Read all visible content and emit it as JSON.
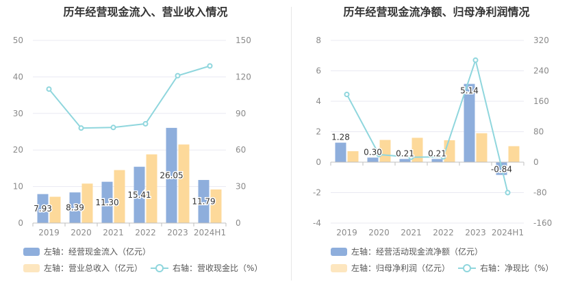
{
  "colors": {
    "blue": "#8eaedc",
    "orange": "#fdd99a",
    "line": "#8fd6dd",
    "grid": "#e9e9f2",
    "axis_text": "#8a8a8a"
  },
  "left": {
    "title": "历年经营现金流入、营业收入情况",
    "legend": {
      "bar1": "左轴：经营现金流入（亿元）",
      "bar2": "左轴：营业总收入（亿元）",
      "line": "右轴：营收现金比（%）"
    }
  },
  "right": {
    "title": "历年经营现金流净额、归母净利润情况",
    "legend": {
      "bar1": "左轴：经营活动现金流净额（亿元）",
      "bar2": "左轴：归母净利润（亿元）",
      "line": "右轴：净现比（%）"
    }
  },
  "chart_data": [
    {
      "type": "bar",
      "title": "历年经营现金流入、营业收入情况",
      "categories": [
        "2019",
        "2020",
        "2021",
        "2022",
        "2023",
        "2024H1"
      ],
      "left_axis": {
        "ylim": [
          0,
          50
        ],
        "ticks": [
          0,
          10,
          20,
          30,
          40,
          50
        ]
      },
      "right_axis": {
        "ylim": [
          0,
          150
        ],
        "ticks": [
          0,
          30,
          60,
          90,
          120,
          150
        ]
      },
      "series": [
        {
          "name": "左轴：经营现金流入（亿元）",
          "axis": "left",
          "kind": "bar",
          "values": [
            7.93,
            8.39,
            11.3,
            15.41,
            26.05,
            11.79
          ],
          "labels": [
            "7.93",
            "8.39",
            "11.30",
            "15.41",
            "26.05",
            "11.79"
          ]
        },
        {
          "name": "左轴：营业总收入（亿元）",
          "axis": "left",
          "kind": "bar",
          "values": [
            7.2,
            10.8,
            14.5,
            18.8,
            21.5,
            9.2
          ]
        },
        {
          "name": "右轴：营收现金比（%）",
          "axis": "right",
          "kind": "line",
          "values": [
            110,
            78,
            78.5,
            81.5,
            121,
            129
          ]
        }
      ],
      "grid": true
    },
    {
      "type": "bar",
      "title": "历年经营现金流净额、归母净利润情况",
      "categories": [
        "2019",
        "2020",
        "2021",
        "2022",
        "2023",
        "2024H1"
      ],
      "left_axis": {
        "ylim": [
          -4,
          8
        ],
        "ticks": [
          -4,
          -2,
          0,
          2,
          4,
          6,
          8
        ]
      },
      "right_axis": {
        "ylim": [
          -160,
          320
        ],
        "ticks": [
          -160,
          -80,
          0,
          80,
          160,
          240,
          320
        ]
      },
      "series": [
        {
          "name": "左轴：经营活动现金流净额（亿元）",
          "axis": "left",
          "kind": "bar",
          "values": [
            1.28,
            0.3,
            0.21,
            0.21,
            5.14,
            -0.84
          ],
          "labels": [
            "1.28",
            "0.30",
            "0.21",
            "0.21",
            "5.14",
            "-0.84"
          ]
        },
        {
          "name": "左轴：归母净利润（亿元）",
          "axis": "left",
          "kind": "bar",
          "values": [
            0.72,
            1.46,
            1.6,
            1.44,
            1.9,
            1.05
          ]
        },
        {
          "name": "右轴：净现比（%）",
          "axis": "right",
          "kind": "line",
          "values": [
            178,
            20,
            13,
            14,
            268,
            -80
          ]
        }
      ],
      "grid": true
    }
  ]
}
